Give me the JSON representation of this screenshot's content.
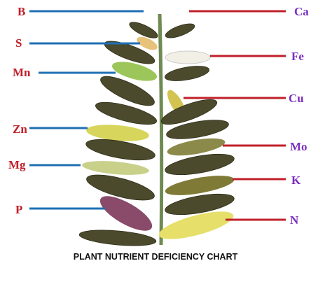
{
  "title": "PLANT NUTRIENT DEFICIENCY CHART",
  "left_labels": [
    "B",
    "S",
    "Mn",
    "Zn",
    "Mg",
    "P"
  ],
  "right_labels": [
    "Ca",
    "Fe",
    "Cu",
    "Mo",
    "K",
    "N"
  ]
}
